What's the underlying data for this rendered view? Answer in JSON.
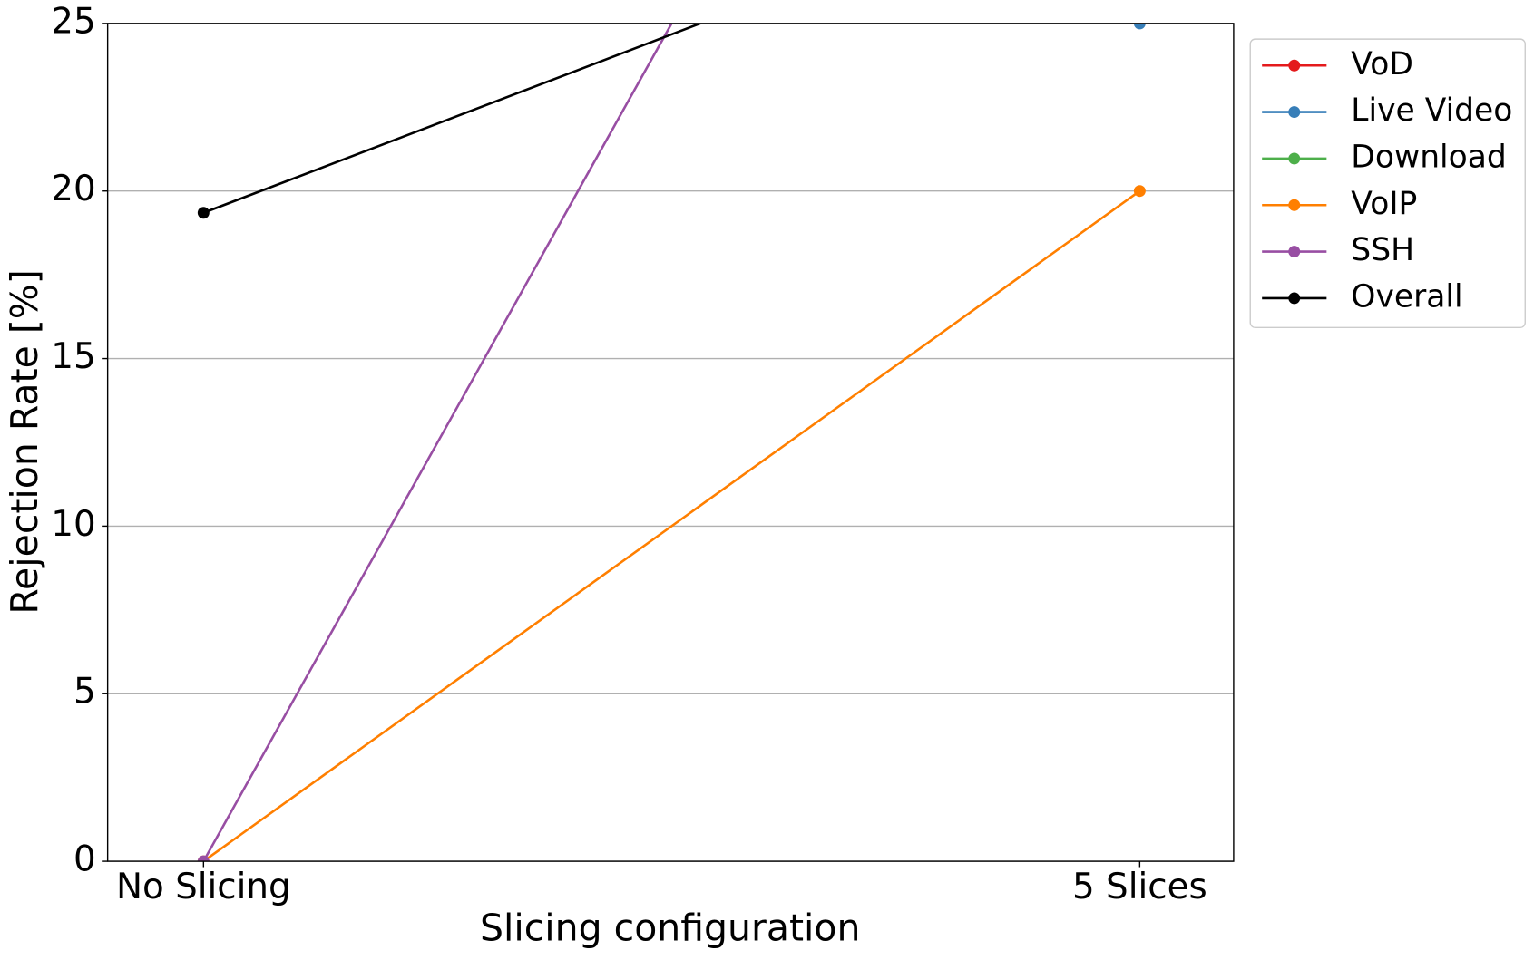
{
  "chart_data": {
    "type": "line",
    "x_label": "Slicing configuration",
    "y_label": "Rejection Rate [%]",
    "categories": [
      "No Slicing",
      "5 Slices"
    ],
    "series": [
      {
        "name": "VoD",
        "color": "#e41a1c",
        "values": [
          null,
          null
        ]
      },
      {
        "name": "Live Video",
        "color": "#377eb8",
        "values": [
          null,
          25
        ]
      },
      {
        "name": "Download",
        "color": "#4daf4a",
        "values": [
          null,
          null
        ]
      },
      {
        "name": "VoIP",
        "color": "#ff7f00",
        "values": [
          0,
          20
        ]
      },
      {
        "name": "SSH",
        "color": "#984ea3",
        "values": [
          0,
          50
        ]
      },
      {
        "name": "Overall",
        "color": "#000000",
        "values": [
          19.35,
          30
        ]
      }
    ],
    "ylim": [
      0,
      25
    ],
    "yticks": [
      0,
      5,
      10,
      15,
      20,
      25
    ],
    "grid": true,
    "legend": "outside-upper-right"
  }
}
